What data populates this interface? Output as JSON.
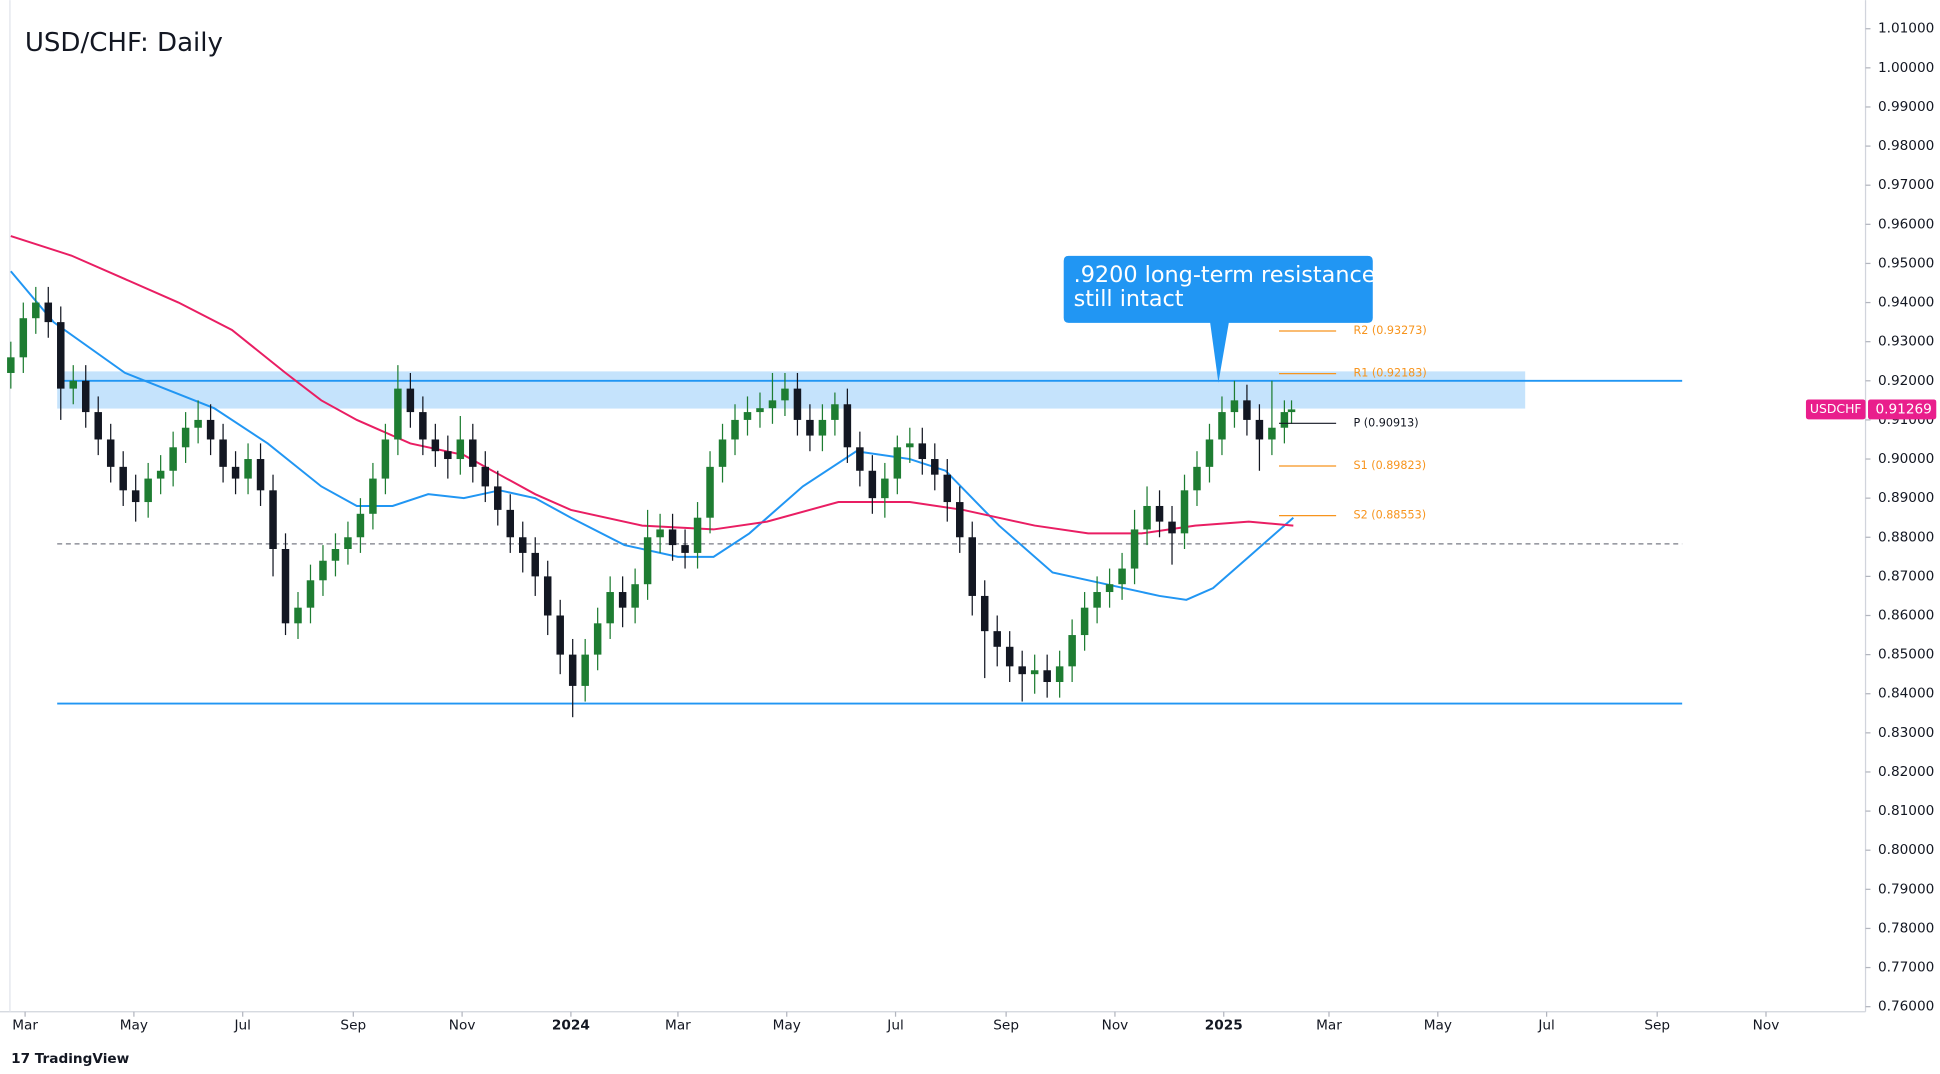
{
  "chart_data": {
    "type": "candlestick",
    "title": "USD/CHF: Daily",
    "footer": "TradingView",
    "up_color": "#1e7d32",
    "down_color": "#131722",
    "xlim": [
      -314.5,
      725.8
    ],
    "xticks": [
      {
        "value": -306,
        "label": "Mar"
      },
      {
        "value": -245,
        "label": "May"
      },
      {
        "value": -184,
        "label": "Jul"
      },
      {
        "value": -122,
        "label": "Sep"
      },
      {
        "value": -61,
        "label": "Nov"
      },
      {
        "value": 0,
        "label": "2024"
      },
      {
        "value": 60,
        "label": "Mar"
      },
      {
        "value": 121,
        "label": "May"
      },
      {
        "value": 182,
        "label": "Jul"
      },
      {
        "value": 244,
        "label": "Sep"
      },
      {
        "value": 305,
        "label": "Nov"
      },
      {
        "value": 366,
        "label": "2025"
      },
      {
        "value": 425,
        "label": "Mar"
      },
      {
        "value": 486,
        "label": "May"
      },
      {
        "value": 547,
        "label": "Jul"
      },
      {
        "value": 609,
        "label": "Sep"
      },
      {
        "value": 670,
        "label": "Nov"
      }
    ],
    "ylim": [
      0.7587,
      1.0173
    ],
    "yticks": [
      {
        "value": 0.76,
        "label": "0.76000"
      },
      {
        "value": 0.77,
        "label": "0.77000"
      },
      {
        "value": 0.78,
        "label": "0.78000"
      },
      {
        "value": 0.79,
        "label": "0.79000"
      },
      {
        "value": 0.8,
        "label": "0.80000"
      },
      {
        "value": 0.81,
        "label": "0.81000"
      },
      {
        "value": 0.82,
        "label": "0.82000"
      },
      {
        "value": 0.83,
        "label": "0.83000"
      },
      {
        "value": 0.84,
        "label": "0.84000"
      },
      {
        "value": 0.85,
        "label": "0.85000"
      },
      {
        "value": 0.86,
        "label": "0.86000"
      },
      {
        "value": 0.87,
        "label": "0.87000"
      },
      {
        "value": 0.88,
        "label": "0.88000"
      },
      {
        "value": 0.89,
        "label": "0.89000"
      },
      {
        "value": 0.9,
        "label": "0.90000"
      },
      {
        "value": 0.91,
        "label": "0.91000"
      },
      {
        "value": 0.92,
        "label": "0.92000"
      },
      {
        "value": 0.93,
        "label": "0.93000"
      },
      {
        "value": 0.94,
        "label": "0.94000"
      },
      {
        "value": 0.95,
        "label": "0.95000"
      },
      {
        "value": 0.96,
        "label": "0.96000"
      },
      {
        "value": 0.97,
        "label": "0.97000"
      },
      {
        "value": 0.98,
        "label": "0.98000"
      },
      {
        "value": 0.99,
        "label": "0.99000"
      },
      {
        "value": 1.0,
        "label": "1.00000"
      },
      {
        "value": 1.01,
        "label": "1.01000"
      }
    ],
    "candles": [
      [
        -314,
        0.922,
        0.93,
        0.918,
        0.926
      ],
      [
        -307,
        0.926,
        0.94,
        0.922,
        0.936
      ],
      [
        -300,
        0.936,
        0.944,
        0.932,
        0.94
      ],
      [
        -293,
        0.94,
        0.944,
        0.931,
        0.935
      ],
      [
        -286,
        0.935,
        0.939,
        0.91,
        0.918
      ],
      [
        -279,
        0.918,
        0.924,
        0.914,
        0.92
      ],
      [
        -272,
        0.92,
        0.924,
        0.908,
        0.912
      ],
      [
        -265,
        0.912,
        0.916,
        0.901,
        0.905
      ],
      [
        -258,
        0.905,
        0.909,
        0.894,
        0.898
      ],
      [
        -251,
        0.898,
        0.902,
        0.888,
        0.892
      ],
      [
        -244,
        0.892,
        0.896,
        0.884,
        0.889
      ],
      [
        -237,
        0.889,
        0.899,
        0.885,
        0.895
      ],
      [
        -230,
        0.895,
        0.901,
        0.891,
        0.897
      ],
      [
        -223,
        0.897,
        0.907,
        0.893,
        0.903
      ],
      [
        -216,
        0.903,
        0.912,
        0.899,
        0.908
      ],
      [
        -209,
        0.908,
        0.915,
        0.904,
        0.91
      ],
      [
        -202,
        0.91,
        0.914,
        0.901,
        0.905
      ],
      [
        -195,
        0.905,
        0.909,
        0.894,
        0.898
      ],
      [
        -188,
        0.898,
        0.902,
        0.891,
        0.895
      ],
      [
        -181,
        0.895,
        0.904,
        0.891,
        0.9
      ],
      [
        -174,
        0.9,
        0.904,
        0.888,
        0.892
      ],
      [
        -167,
        0.892,
        0.896,
        0.87,
        0.877
      ],
      [
        -160,
        0.877,
        0.881,
        0.855,
        0.858
      ],
      [
        -153,
        0.858,
        0.866,
        0.854,
        0.862
      ],
      [
        -146,
        0.862,
        0.873,
        0.858,
        0.869
      ],
      [
        -139,
        0.869,
        0.878,
        0.865,
        0.874
      ],
      [
        -132,
        0.874,
        0.881,
        0.87,
        0.877
      ],
      [
        -125,
        0.877,
        0.884,
        0.873,
        0.88
      ],
      [
        -118,
        0.88,
        0.89,
        0.876,
        0.886
      ],
      [
        -111,
        0.886,
        0.899,
        0.882,
        0.895
      ],
      [
        -104,
        0.895,
        0.909,
        0.891,
        0.905
      ],
      [
        -97,
        0.905,
        0.924,
        0.901,
        0.918
      ],
      [
        -90,
        0.918,
        0.922,
        0.908,
        0.912
      ],
      [
        -83,
        0.912,
        0.916,
        0.901,
        0.905
      ],
      [
        -76,
        0.905,
        0.909,
        0.898,
        0.902
      ],
      [
        -69,
        0.902,
        0.906,
        0.895,
        0.9
      ],
      [
        -62,
        0.9,
        0.911,
        0.896,
        0.905
      ],
      [
        -55,
        0.905,
        0.909,
        0.894,
        0.898
      ],
      [
        -48,
        0.898,
        0.902,
        0.889,
        0.893
      ],
      [
        -41,
        0.893,
        0.897,
        0.883,
        0.887
      ],
      [
        -34,
        0.887,
        0.891,
        0.876,
        0.88
      ],
      [
        -27,
        0.88,
        0.884,
        0.871,
        0.876
      ],
      [
        -20,
        0.876,
        0.88,
        0.865,
        0.87
      ],
      [
        -13,
        0.87,
        0.874,
        0.855,
        0.86
      ],
      [
        -6,
        0.86,
        0.864,
        0.845,
        0.85
      ],
      [
        1,
        0.85,
        0.854,
        0.834,
        0.842
      ],
      [
        8,
        0.842,
        0.854,
        0.838,
        0.85
      ],
      [
        15,
        0.85,
        0.862,
        0.846,
        0.858
      ],
      [
        22,
        0.858,
        0.87,
        0.854,
        0.866
      ],
      [
        29,
        0.866,
        0.87,
        0.857,
        0.862
      ],
      [
        36,
        0.862,
        0.872,
        0.858,
        0.868
      ],
      [
        43,
        0.868,
        0.887,
        0.864,
        0.88
      ],
      [
        50,
        0.88,
        0.886,
        0.876,
        0.882
      ],
      [
        57,
        0.882,
        0.886,
        0.874,
        0.878
      ],
      [
        64,
        0.878,
        0.882,
        0.872,
        0.876
      ],
      [
        71,
        0.876,
        0.889,
        0.872,
        0.885
      ],
      [
        78,
        0.885,
        0.902,
        0.881,
        0.898
      ],
      [
        85,
        0.898,
        0.909,
        0.894,
        0.905
      ],
      [
        92,
        0.905,
        0.914,
        0.901,
        0.91
      ],
      [
        99,
        0.91,
        0.916,
        0.906,
        0.912
      ],
      [
        106,
        0.912,
        0.917,
        0.908,
        0.913
      ],
      [
        113,
        0.913,
        0.922,
        0.909,
        0.915
      ],
      [
        120,
        0.915,
        0.922,
        0.911,
        0.918
      ],
      [
        127,
        0.918,
        0.922,
        0.906,
        0.91
      ],
      [
        134,
        0.91,
        0.914,
        0.902,
        0.906
      ],
      [
        141,
        0.906,
        0.914,
        0.902,
        0.91
      ],
      [
        148,
        0.91,
        0.917,
        0.906,
        0.914
      ],
      [
        155,
        0.914,
        0.918,
        0.899,
        0.903
      ],
      [
        162,
        0.903,
        0.907,
        0.893,
        0.897
      ],
      [
        169,
        0.897,
        0.901,
        0.886,
        0.89
      ],
      [
        176,
        0.89,
        0.899,
        0.885,
        0.895
      ],
      [
        183,
        0.895,
        0.906,
        0.891,
        0.903
      ],
      [
        190,
        0.903,
        0.908,
        0.899,
        0.904
      ],
      [
        197,
        0.904,
        0.908,
        0.896,
        0.9
      ],
      [
        204,
        0.9,
        0.904,
        0.892,
        0.896
      ],
      [
        211,
        0.896,
        0.9,
        0.884,
        0.889
      ],
      [
        218,
        0.889,
        0.893,
        0.876,
        0.88
      ],
      [
        225,
        0.88,
        0.884,
        0.86,
        0.865
      ],
      [
        232,
        0.865,
        0.869,
        0.844,
        0.856
      ],
      [
        239,
        0.856,
        0.86,
        0.847,
        0.852
      ],
      [
        246,
        0.852,
        0.856,
        0.843,
        0.847
      ],
      [
        253,
        0.847,
        0.851,
        0.838,
        0.845
      ],
      [
        260,
        0.845,
        0.85,
        0.84,
        0.846
      ],
      [
        267,
        0.846,
        0.85,
        0.839,
        0.843
      ],
      [
        274,
        0.843,
        0.851,
        0.839,
        0.847
      ],
      [
        281,
        0.847,
        0.859,
        0.843,
        0.855
      ],
      [
        288,
        0.855,
        0.866,
        0.851,
        0.862
      ],
      [
        295,
        0.862,
        0.87,
        0.858,
        0.866
      ],
      [
        302,
        0.866,
        0.872,
        0.862,
        0.868
      ],
      [
        309,
        0.868,
        0.876,
        0.864,
        0.872
      ],
      [
        316,
        0.872,
        0.887,
        0.868,
        0.882
      ],
      [
        323,
        0.882,
        0.893,
        0.878,
        0.888
      ],
      [
        330,
        0.888,
        0.892,
        0.88,
        0.884
      ],
      [
        337,
        0.884,
        0.888,
        0.873,
        0.881
      ],
      [
        344,
        0.881,
        0.896,
        0.877,
        0.892
      ],
      [
        351,
        0.892,
        0.902,
        0.888,
        0.898
      ],
      [
        358,
        0.898,
        0.909,
        0.894,
        0.905
      ],
      [
        365,
        0.905,
        0.916,
        0.901,
        0.912
      ],
      [
        372,
        0.912,
        0.92,
        0.908,
        0.915
      ],
      [
        379,
        0.915,
        0.919,
        0.906,
        0.91
      ],
      [
        386,
        0.91,
        0.914,
        0.897,
        0.905
      ],
      [
        393,
        0.905,
        0.92,
        0.901,
        0.908
      ],
      [
        400,
        0.908,
        0.915,
        0.904,
        0.912
      ],
      [
        404,
        0.912,
        0.915,
        0.909,
        0.91269
      ]
    ],
    "moving_averages": [
      {
        "color": "#2196f3",
        "x": [
          -314,
          -290,
          -250,
          -200,
          -170,
          -140,
          -120,
          -100,
          -80,
          -60,
          -40,
          -20,
          0,
          30,
          60,
          80,
          100,
          130,
          160,
          190,
          210,
          240,
          270,
          300,
          330,
          345,
          360,
          380,
          405
        ],
        "values": [
          0.948,
          0.935,
          0.922,
          0.913,
          0.904,
          0.893,
          0.888,
          0.888,
          0.891,
          0.89,
          0.892,
          0.89,
          0.885,
          0.878,
          0.875,
          0.875,
          0.881,
          0.893,
          0.902,
          0.9,
          0.897,
          0.883,
          0.871,
          0.868,
          0.865,
          0.864,
          0.867,
          0.875,
          0.885
        ]
      },
      {
        "color": "#e91e63",
        "x": [
          -314,
          -280,
          -250,
          -220,
          -190,
          -160,
          -140,
          -120,
          -90,
          -60,
          -40,
          -20,
          0,
          40,
          80,
          110,
          150,
          190,
          220,
          260,
          290,
          320,
          350,
          380,
          405
        ],
        "values": [
          0.957,
          0.952,
          0.946,
          0.94,
          0.933,
          0.922,
          0.915,
          0.91,
          0.904,
          0.901,
          0.896,
          0.891,
          0.887,
          0.883,
          0.882,
          0.884,
          0.889,
          0.889,
          0.887,
          0.883,
          0.881,
          0.881,
          0.883,
          0.884,
          0.883
        ]
      }
    ],
    "zone": {
      "from": 0.9129,
      "to": 0.9224,
      "x": [
        -288,
        535
      ],
      "color": "#bbdefb"
    },
    "levels": [
      {
        "value": 0.92,
        "x": [
          -288,
          623
        ],
        "color": "#2196f3",
        "dashed": false
      },
      {
        "value": 0.8375,
        "x": [
          -288,
          623
        ],
        "color": "#2196f3",
        "dashed": false
      },
      {
        "value": 0.8783,
        "x": [
          -288,
          623
        ],
        "color": "#787b86",
        "dashed": true
      }
    ],
    "pivots": [
      {
        "label": "R2 (0.93273)",
        "value": 0.93273,
        "color": "#f7941d"
      },
      {
        "label": "R1 (0.92183)",
        "value": 0.92183,
        "color": "#f7941d"
      },
      {
        "label": "P (0.90913)",
        "value": 0.90913,
        "color": "#131722"
      },
      {
        "label": "S1 (0.89823)",
        "value": 0.89823,
        "color": "#f7941d"
      },
      {
        "label": "S2 (0.88553)",
        "value": 0.88553,
        "color": "#f7941d"
      }
    ],
    "pivot_x": [
      397,
      429
    ],
    "annotation": {
      "lines": [
        ".9200 long-term resistance",
        "still intact"
      ],
      "x": 363,
      "value": 0.9195,
      "color": "#2196f3"
    },
    "last_price": {
      "symbol": "USDCHF",
      "label": "0.91269",
      "value": 0.91269,
      "color": "#e91e8c"
    }
  }
}
